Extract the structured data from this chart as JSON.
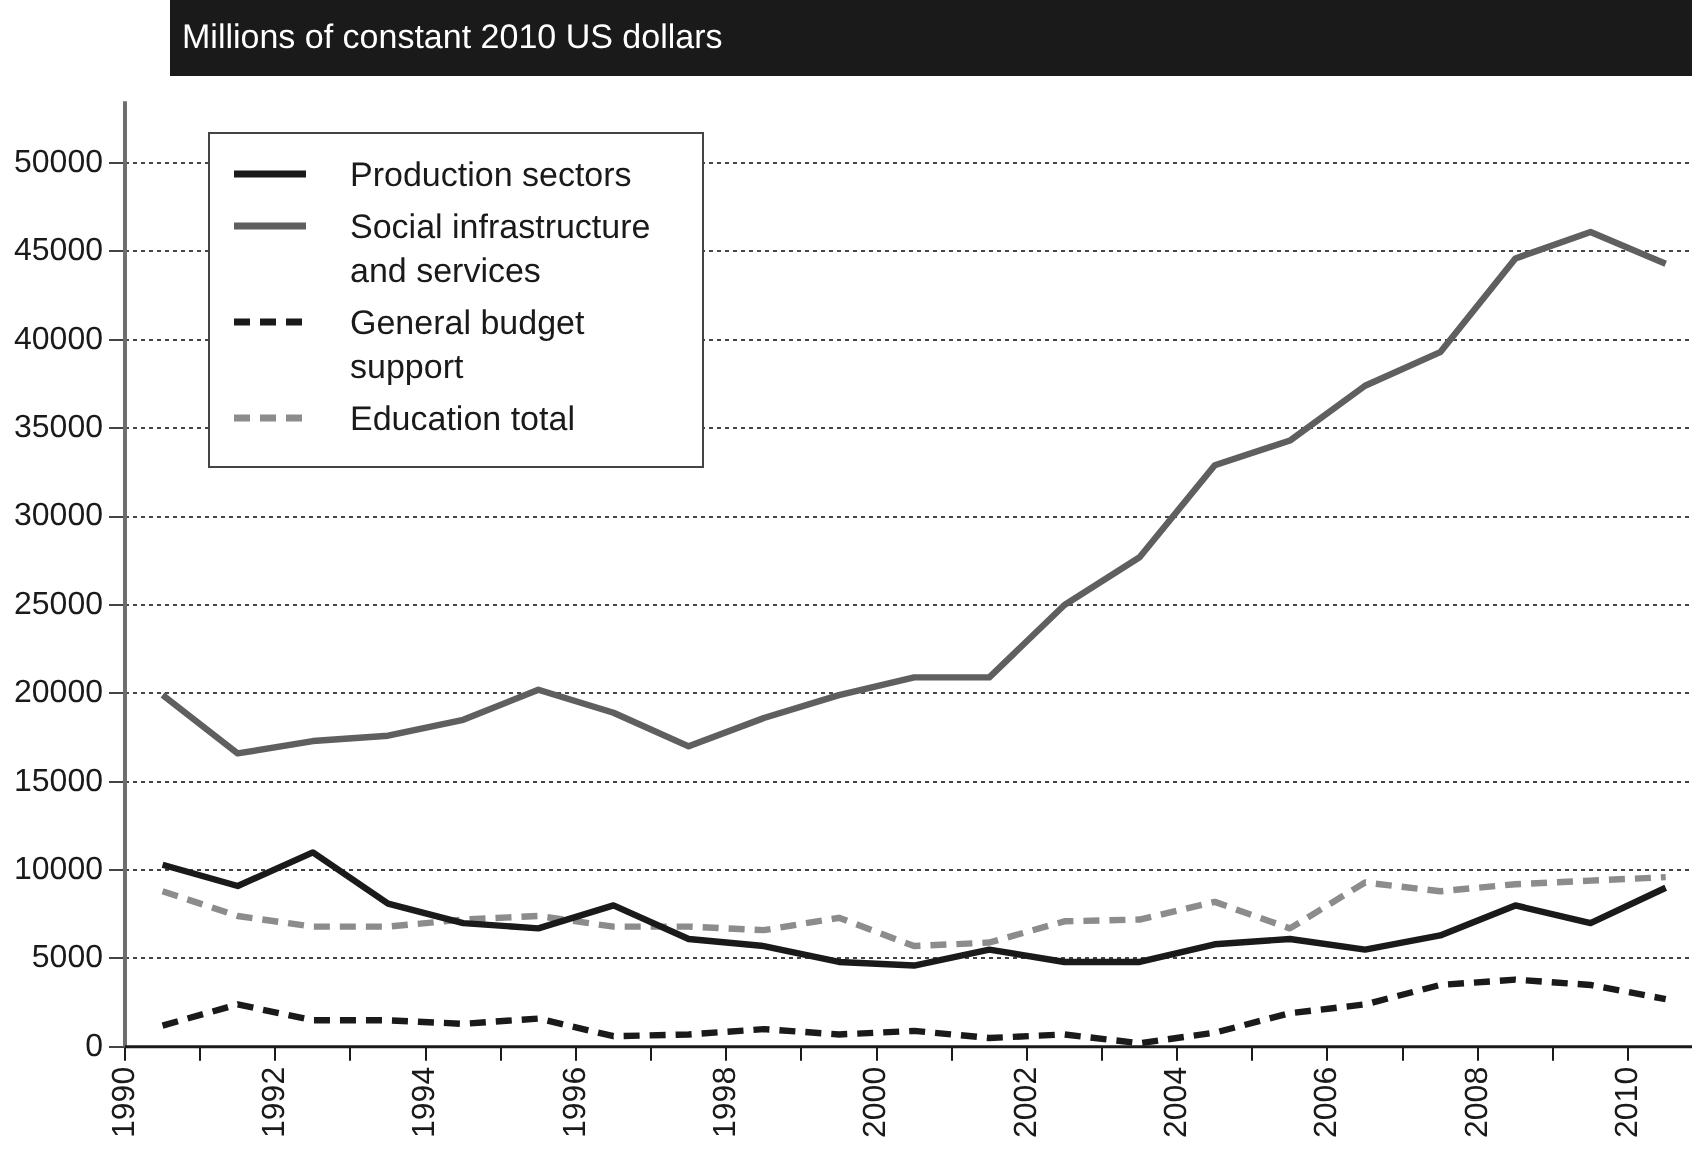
{
  "chart_data": {
    "type": "line",
    "title": "Millions of constant 2010 US dollars",
    "x": [
      1990.5,
      1991.5,
      1992.5,
      1993.5,
      1994.5,
      1995.5,
      1996.5,
      1997.5,
      1998.5,
      1999.5,
      2000.5,
      2001.5,
      2002.5,
      2003.5,
      2004.5,
      2005.5,
      2006.5,
      2007.5,
      2008.5,
      2009.5,
      2010.5
    ],
    "series": [
      {
        "name": "Production sectors",
        "color": "#1a1a1a",
        "line_style": "solid",
        "values": [
          10300,
          9100,
          11000,
          8100,
          7000,
          6700,
          8000,
          6100,
          5700,
          4800,
          4600,
          5500,
          4800,
          4800,
          5800,
          6100,
          5500,
          6300,
          8000,
          7000,
          9000
        ]
      },
      {
        "name": "Social infrastructure and services",
        "color": "#5f5f5f",
        "line_style": "solid",
        "values": [
          19900,
          16600,
          17300,
          17600,
          18500,
          20200,
          18900,
          17000,
          18600,
          19900,
          20900,
          20900,
          25000,
          27700,
          32900,
          34300,
          37400,
          39300,
          44600,
          46100,
          44300
        ]
      },
      {
        "name": "General budget support",
        "color": "#1a1a1a",
        "line_style": "dashed",
        "values": [
          1200,
          2400,
          1500,
          1500,
          1300,
          1600,
          600,
          700,
          1000,
          700,
          900,
          500,
          700,
          200,
          800,
          1900,
          2400,
          3500,
          3800,
          3500,
          2700
        ]
      },
      {
        "name": "Education total",
        "color": "#8c8c8c",
        "line_style": "dashed",
        "values": [
          8800,
          7400,
          6800,
          6800,
          7200,
          7400,
          6800,
          6800,
          6600,
          7300,
          5700,
          5900,
          7100,
          7200,
          8200,
          6700,
          9300,
          8800,
          9200,
          9400,
          9600
        ]
      }
    ],
    "xlim": [
      1990,
      2010.85
    ],
    "xticks": [
      1990,
      {
        "value": 1991,
        "label": null
      },
      1992,
      {
        "value": 1993,
        "label": null
      },
      1994,
      {
        "value": 1995,
        "label": null
      },
      1996,
      {
        "value": 1997,
        "label": null
      },
      1998,
      {
        "value": 1999,
        "label": null
      },
      2000,
      {
        "value": 2001,
        "label": null
      },
      2002,
      {
        "value": 2003,
        "label": null
      },
      2004,
      {
        "value": 2005,
        "label": null
      },
      2006,
      {
        "value": 2007,
        "label": null
      },
      2008,
      {
        "value": 2009,
        "label": null
      },
      2010
    ],
    "ylim": [
      0,
      53500
    ],
    "yticks": [
      0,
      5000,
      10000,
      15000,
      20000,
      25000,
      30000,
      35000,
      40000,
      45000,
      50000
    ],
    "grid": "y",
    "legend": "top left",
    "marker": "none"
  }
}
